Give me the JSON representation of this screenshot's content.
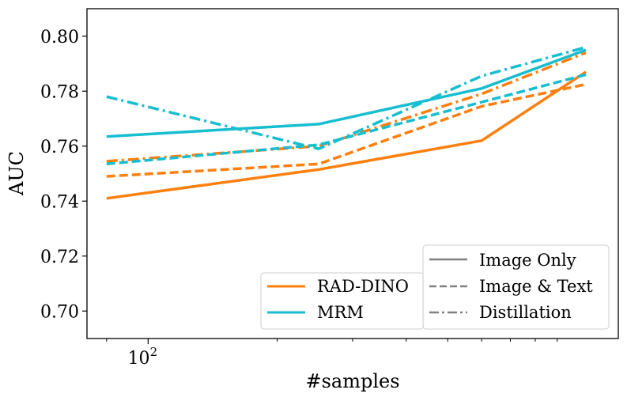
{
  "chart_data": {
    "type": "line",
    "xscale": "log",
    "xlabel": "#samples",
    "ylabel": "AUC",
    "ylim": [
      0.69,
      0.81
    ],
    "xlim": [
      72,
      1250
    ],
    "yticks": [
      0.7,
      0.72,
      0.74,
      0.76,
      0.78,
      0.8
    ],
    "ytick_labels": [
      "0.70",
      "0.72",
      "0.74",
      "0.76",
      "0.78",
      "0.80"
    ],
    "xticks_major": [
      {
        "value": 100,
        "base": "10",
        "exp": "2"
      }
    ],
    "xticks_minor": [
      80,
      200,
      300,
      400,
      500,
      600,
      700,
      800,
      900
    ],
    "x": [
      80,
      250,
      600,
      1050
    ],
    "colors": {
      "RAD-DINO": "#ff7f0e",
      "MRM": "#17becf",
      "style_legend": "#808080"
    },
    "series": [
      {
        "model": "RAD-DINO",
        "mode": "Image Only",
        "style": "solid",
        "values": [
          0.741,
          0.7515,
          0.762,
          0.787
        ]
      },
      {
        "model": "RAD-DINO",
        "mode": "Image & Text",
        "style": "dashed",
        "values": [
          0.749,
          0.7535,
          0.7745,
          0.7825
        ]
      },
      {
        "model": "RAD-DINO",
        "mode": "Distillation",
        "style": "dashdot",
        "values": [
          0.7545,
          0.76,
          0.779,
          0.794
        ]
      },
      {
        "model": "MRM",
        "mode": "Image Only",
        "style": "solid",
        "values": [
          0.7635,
          0.768,
          0.781,
          0.795
        ]
      },
      {
        "model": "MRM",
        "mode": "Image & Text",
        "style": "dashed",
        "values": [
          0.7535,
          0.7605,
          0.776,
          0.786
        ]
      },
      {
        "model": "MRM",
        "mode": "Distillation",
        "style": "dashdot",
        "values": [
          0.778,
          0.759,
          0.7855,
          0.796
        ]
      }
    ],
    "legend_models": {
      "placement": "lower-center",
      "entries": [
        "RAD-DINO",
        "MRM"
      ]
    },
    "legend_styles": {
      "placement": "lower-right",
      "entries": [
        {
          "label": "Image Only",
          "style": "solid"
        },
        {
          "label": "Image & Text",
          "style": "dashed"
        },
        {
          "label": "Distillation",
          "style": "dashdot"
        }
      ]
    }
  }
}
